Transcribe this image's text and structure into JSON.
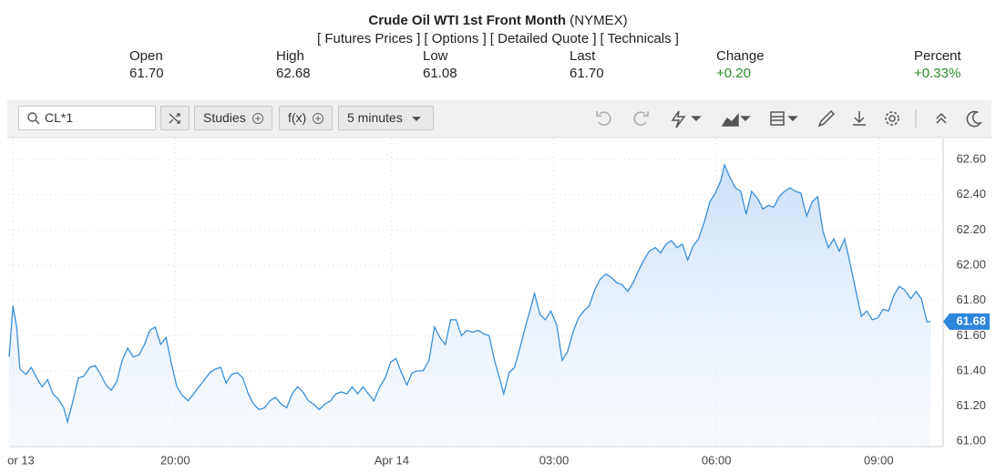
{
  "header": {
    "title": "Crude Oil WTI 1st Front Month",
    "exchange": "(NYMEX)",
    "links": [
      "[ Futures Prices ]",
      "[ Options ]",
      "[ Detailed Quote ]",
      "[ Technicals ]"
    ]
  },
  "quote": [
    {
      "label": "Open",
      "value": "61.70"
    },
    {
      "label": "High",
      "value": "62.68"
    },
    {
      "label": "Low",
      "value": "61.08"
    },
    {
      "label": "Last",
      "value": "61.70"
    },
    {
      "label": "Change",
      "value": "+0.20"
    },
    {
      "label": "Percent",
      "value": "+0.33%"
    }
  ],
  "toolbar": {
    "symbol": "CL*1",
    "studies": "Studies",
    "fx": "f(x)",
    "interval": "5 minutes"
  },
  "chart_data": {
    "type": "line",
    "color": "#3b8fd6",
    "grid": true,
    "x": [
      16.93,
      17.0,
      17.07,
      17.13,
      17.24,
      17.34,
      17.44,
      17.54,
      17.64,
      17.74,
      17.84,
      17.94,
      18.01,
      18.11,
      18.21,
      18.31,
      18.42,
      18.52,
      18.62,
      18.72,
      18.82,
      18.92,
      19.02,
      19.12,
      19.22,
      19.33,
      19.43,
      19.53,
      19.63,
      19.73,
      19.83,
      19.93,
      20.03,
      20.13,
      20.24,
      20.34,
      20.44,
      20.54,
      20.64,
      20.74,
      20.84,
      20.94,
      21.04,
      21.15,
      21.25,
      21.35,
      21.45,
      21.55,
      21.65,
      21.75,
      21.85,
      21.96,
      22.06,
      22.16,
      22.26,
      22.36,
      22.46,
      22.56,
      22.66,
      22.76,
      22.87,
      22.97,
      23.07,
      23.17,
      23.27,
      23.37,
      23.47,
      23.57,
      23.67,
      23.78,
      23.88,
      23.98,
      24.08,
      24.18,
      24.28,
      24.38,
      24.48,
      24.58,
      24.69,
      24.79,
      24.89,
      24.99,
      25.09,
      25.19,
      25.29,
      25.39,
      25.49,
      25.6,
      25.7,
      25.8,
      25.9,
      26.0,
      26.07,
      26.17,
      26.27,
      26.37,
      26.47,
      26.57,
      26.64,
      26.74,
      26.84,
      26.94,
      27.05,
      27.15,
      27.25,
      27.35,
      27.45,
      27.55,
      27.65,
      27.75,
      27.85,
      27.96,
      28.06,
      28.16,
      28.26,
      28.36,
      28.46,
      28.56,
      28.66,
      28.76,
      28.87,
      28.97,
      29.07,
      29.17,
      29.27,
      29.37,
      29.47,
      29.57,
      29.67,
      29.78,
      29.88,
      29.98,
      30.08,
      30.15,
      30.25,
      30.35,
      30.45,
      30.55,
      30.65,
      30.76,
      30.86,
      30.96,
      31.06,
      31.16,
      31.26,
      31.36,
      31.46,
      31.56,
      31.67,
      31.77,
      31.87,
      31.97,
      32.07,
      32.17,
      32.27,
      32.37,
      32.47,
      32.58,
      32.68,
      32.78,
      32.88,
      32.98,
      33.08,
      33.18,
      33.28,
      33.38,
      33.48,
      33.59,
      33.69,
      33.79,
      33.89,
      33.96
    ],
    "values": [
      61.48,
      61.77,
      61.65,
      61.41,
      61.38,
      61.42,
      61.36,
      61.31,
      61.35,
      61.27,
      61.24,
      61.19,
      61.11,
      61.23,
      61.36,
      61.37,
      61.42,
      61.43,
      61.38,
      61.32,
      61.29,
      61.34,
      61.46,
      61.53,
      61.48,
      61.49,
      61.55,
      61.63,
      61.65,
      61.55,
      61.59,
      61.44,
      61.31,
      61.26,
      61.23,
      61.27,
      61.31,
      61.35,
      61.39,
      61.41,
      61.42,
      61.33,
      61.38,
      61.39,
      61.36,
      61.27,
      61.21,
      61.18,
      61.19,
      61.23,
      61.25,
      61.21,
      61.19,
      61.27,
      61.31,
      61.28,
      61.23,
      61.21,
      61.18,
      61.21,
      61.23,
      61.27,
      61.28,
      61.27,
      61.31,
      61.27,
      61.31,
      61.27,
      61.23,
      61.31,
      61.36,
      61.45,
      61.47,
      61.39,
      61.32,
      61.39,
      61.4,
      61.4,
      61.46,
      61.65,
      61.59,
      61.55,
      61.69,
      61.69,
      61.6,
      61.63,
      61.62,
      61.63,
      61.61,
      61.6,
      61.46,
      61.35,
      61.27,
      61.39,
      61.42,
      61.53,
      61.65,
      61.76,
      61.84,
      61.72,
      61.69,
      61.74,
      61.66,
      61.46,
      61.51,
      61.62,
      61.7,
      61.74,
      61.77,
      61.86,
      61.92,
      61.95,
      61.93,
      61.9,
      61.89,
      61.85,
      61.9,
      61.97,
      62.03,
      62.08,
      62.1,
      62.07,
      62.12,
      62.14,
      62.1,
      62.12,
      62.03,
      62.11,
      62.15,
      62.25,
      62.36,
      62.41,
      62.48,
      62.57,
      62.5,
      62.44,
      62.42,
      62.29,
      62.42,
      62.38,
      62.32,
      62.34,
      62.33,
      62.39,
      62.42,
      62.44,
      62.42,
      62.41,
      62.28,
      62.36,
      62.39,
      62.19,
      62.1,
      62.15,
      62.08,
      62.15,
      62.01,
      61.85,
      61.71,
      61.74,
      61.69,
      61.7,
      61.75,
      61.74,
      61.83,
      61.88,
      61.86,
      61.81,
      61.85,
      61.81,
      61.68,
      61.68
    ],
    "xlim": [
      16.93,
      34.19
    ],
    "xticks": [
      {
        "value": 17,
        "label": "or 13"
      },
      {
        "value": 20,
        "label": "20:00"
      },
      {
        "value": 24,
        "label": "Apr 14"
      },
      {
        "value": 27,
        "label": "03:00"
      },
      {
        "value": 30,
        "label": "06:00"
      },
      {
        "value": 33,
        "label": "09:00"
      }
    ],
    "ylim": [
      60.97,
      62.72
    ],
    "yticks": [
      {
        "value": 61,
        "label": "61.00"
      },
      {
        "value": 61.2,
        "label": "61.20"
      },
      {
        "value": 61.4,
        "label": "61.40"
      },
      {
        "value": 61.6,
        "label": "61.60"
      },
      {
        "value": 61.8,
        "label": "61.80"
      },
      {
        "value": 62,
        "label": "62.00"
      },
      {
        "value": 62.2,
        "label": "62.20"
      },
      {
        "value": 62.4,
        "label": "62.40"
      },
      {
        "value": 62.6,
        "label": "62.60"
      }
    ]
  }
}
